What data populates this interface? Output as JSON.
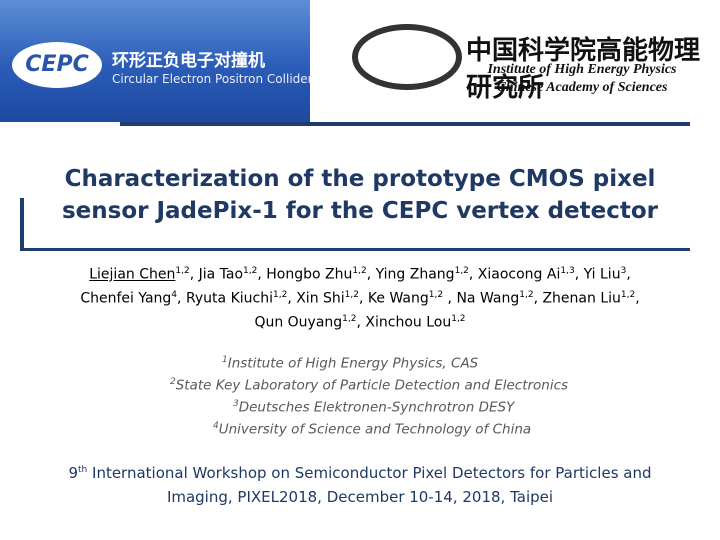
{
  "header": {
    "cepc_logo": "CEPC",
    "cepc_chinese": "环形正负电子对撞机",
    "cepc_english": "Circular Electron Positron Collider",
    "ihep_chinese": "中国科学院高能物理研究所",
    "ihep_english": "Institute of High Energy Physics",
    "cas_english": "Chinese Academy of Sciences"
  },
  "title": [
    "Characterization of the prototype CMOS pixel",
    "sensor JadePix-1 for the CEPC vertex detector"
  ],
  "authors": [
    [
      {
        "name": "Liejian Chen",
        "sup": "1,2",
        "sep": ", "
      },
      {
        "name": "Jia Tao",
        "sup": "1,2",
        "sep": ", "
      },
      {
        "name": "Hongbo Zhu",
        "sup": "1,2",
        "sep": ", "
      },
      {
        "name": "Ying Zhang",
        "sup": "1,2",
        "sep": ", "
      },
      {
        "name": "Xiaocong Ai",
        "sup": "1,3",
        "sep": ", "
      },
      {
        "name": "Yi Liu",
        "sup": "3",
        "sep": ","
      }
    ],
    [
      {
        "name": "Chenfei Yang",
        "sup": "4",
        "sep": ", "
      },
      {
        "name": "Ryuta Kiuchi",
        "sup": "1,2",
        "sep": ", "
      },
      {
        "name": "Xin Shi",
        "sup": "1,2",
        "sep": ", "
      },
      {
        "name": "Ke Wang",
        "sup": "1,2",
        "sep": " , "
      },
      {
        "name": "Na Wang",
        "sup": "1,2",
        "sep": ", "
      },
      {
        "name": "Zhenan Liu",
        "sup": "1,2",
        "sep": ","
      }
    ],
    [
      {
        "name": "Qun Ouyang",
        "sup": "1,2",
        "sep": ", "
      },
      {
        "name": "Xinchou Lou",
        "sup": "1,2"
      }
    ]
  ],
  "affiliations": [
    {
      "number": "1",
      "text": "Institute of High Energy Physics, CAS"
    },
    {
      "number": "2",
      "text": "State Key Laboratory of Particle Detection and Electronics"
    },
    {
      "number": "3",
      "text": "Deutsches Elektronen-Synchrotron DESY"
    },
    {
      "number": "4",
      "text": "University of Science and Technology of China"
    }
  ],
  "conference": {
    "ordinal": "9",
    "suffix": "th",
    "line1": " International Workshop on Semiconductor Pixel Detectors for Particles and",
    "line2": "Imaging, PIXEL2018,  December 10-14, 2018, Taipei"
  }
}
